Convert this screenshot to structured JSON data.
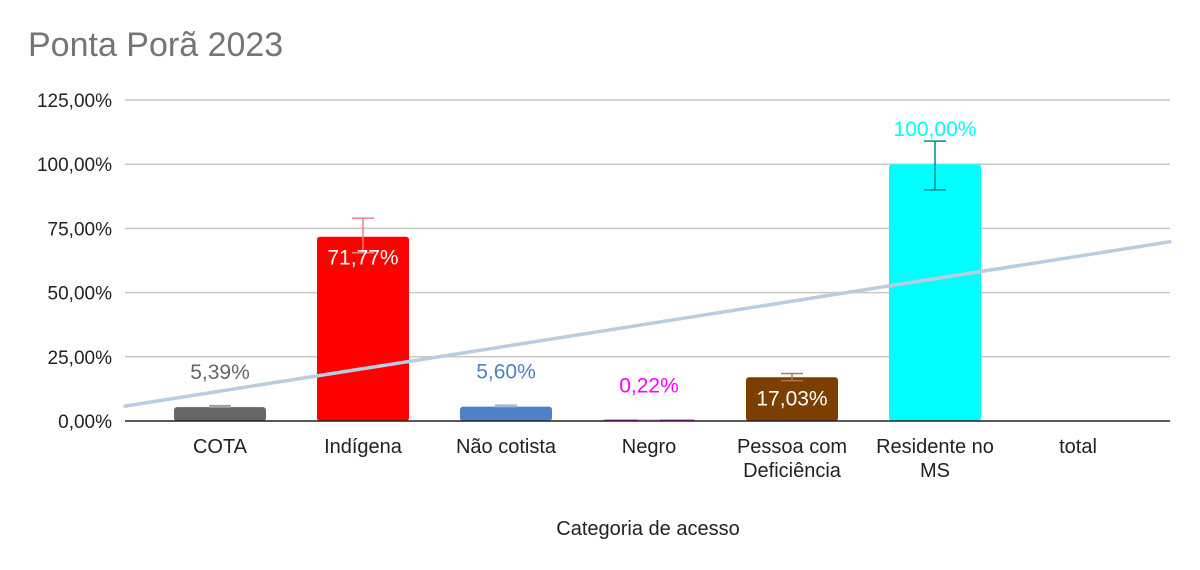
{
  "chart_data": {
    "type": "bar",
    "title": "Ponta Porã 2023",
    "xlabel": "Categoria de acesso",
    "ylabel": "",
    "ylim": [
      0,
      125
    ],
    "y_ticks": [
      "0,00%",
      "25,00%",
      "50,00%",
      "75,00%",
      "100,00%",
      "125,00%"
    ],
    "y_tick_values": [
      0,
      25,
      50,
      75,
      100,
      125
    ],
    "grid": true,
    "legend": "none",
    "categories": [
      [
        "COTA"
      ],
      [
        "Indígena"
      ],
      [
        "Não cotista"
      ],
      [
        "Negro"
      ],
      [
        "Pessoa com",
        "Deficiência"
      ],
      [
        "Residente no",
        "MS"
      ],
      [
        "total"
      ]
    ],
    "values": [
      5.39,
      71.77,
      5.6,
      0.22,
      17.03,
      100.0,
      null
    ],
    "value_labels": [
      "5,39%",
      "71,77%",
      "5,60%",
      "0,22%",
      "17,03%",
      "100,00%",
      ""
    ],
    "bar_colors": [
      "#666666",
      "#ff0000",
      "#4f81c7",
      "#ff00ff",
      "#7b3f00",
      "#00ffff",
      "#ffffff"
    ],
    "label_colors": [
      "#666666",
      "#ffffff",
      "#4f81c7",
      "#ff00ff",
      "#ffffff",
      "#00ffff",
      "#000000"
    ],
    "error_bars": [
      {
        "low": 5.39,
        "high": 6.0
      },
      {
        "low": 65.5,
        "high": 79.0
      },
      {
        "low": 5.6,
        "high": 6.2
      },
      {
        "low": 0.22,
        "high": 0.22
      },
      {
        "low": 15.7,
        "high": 18.5
      },
      {
        "low": 90.0,
        "high": 109.0
      },
      null
    ],
    "error_bar_colors": [
      "#9e9e9e",
      "#f08080",
      "#9fb4d6",
      "#ff80ff",
      "#b07a50",
      "#008b8b",
      "#000000"
    ],
    "trendline": {
      "type": "linear",
      "color": "#b8cde0",
      "start_value": 5.8,
      "end_value": 69.8
    }
  }
}
